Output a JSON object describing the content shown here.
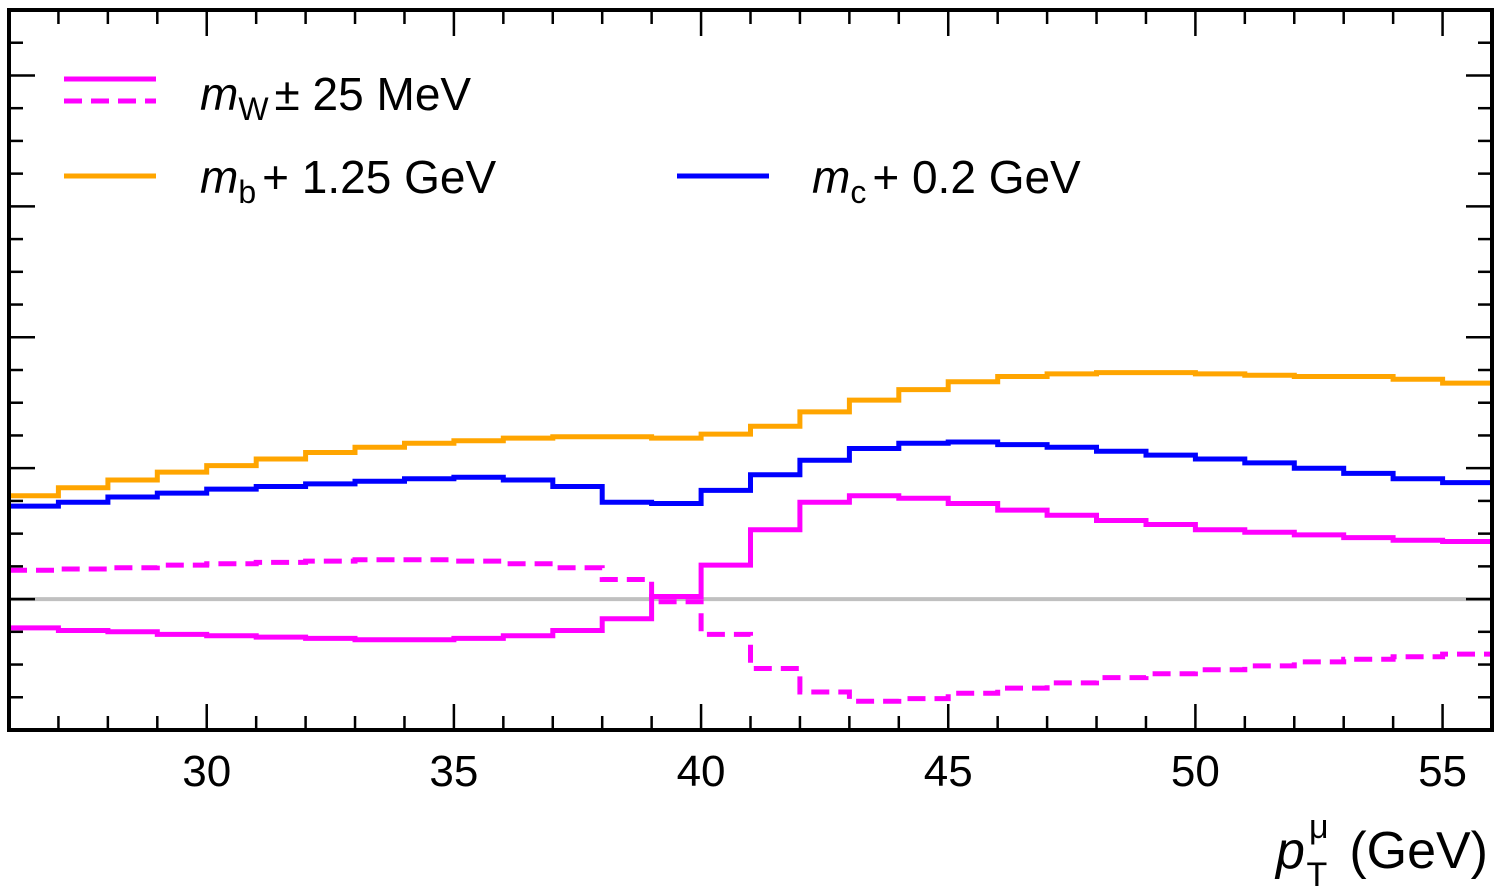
{
  "chart_data": {
    "type": "line",
    "step": true,
    "xlim": [
      26,
      56
    ],
    "ylim": [
      -1.0,
      4.5
    ],
    "grid": false,
    "legend_position": "top-left",
    "xlabel": {
      "main": "p",
      "sub": "T",
      "sup": "μ",
      "unit": "(GeV)"
    },
    "xticks": [
      30,
      35,
      40,
      45,
      50,
      55
    ],
    "reference_line": {
      "y": 0,
      "color": "#c0c0c0"
    },
    "bin_edges": [
      26,
      27,
      28,
      29,
      30,
      31,
      32,
      33,
      34,
      35,
      36,
      37,
      38,
      39,
      40,
      41,
      42,
      43,
      44,
      45,
      46,
      47,
      48,
      49,
      50,
      51,
      52,
      53,
      54,
      55,
      56
    ],
    "series": [
      {
        "name": "mW + 25 MeV",
        "color": "#ff00ff",
        "dash": "solid",
        "values": [
          -0.22,
          -0.24,
          -0.25,
          -0.27,
          -0.28,
          -0.29,
          -0.3,
          -0.31,
          -0.31,
          -0.3,
          -0.28,
          -0.24,
          -0.15,
          0.02,
          0.26,
          0.53,
          0.74,
          0.79,
          0.77,
          0.73,
          0.68,
          0.64,
          0.6,
          0.57,
          0.53,
          0.51,
          0.49,
          0.47,
          0.45,
          0.44
        ]
      },
      {
        "name": "mW - 25 MeV",
        "color": "#ff00ff",
        "dash": "dashed",
        "values": [
          0.22,
          0.23,
          0.24,
          0.26,
          0.27,
          0.28,
          0.29,
          0.3,
          0.3,
          0.29,
          0.27,
          0.24,
          0.15,
          -0.02,
          -0.27,
          -0.53,
          -0.71,
          -0.78,
          -0.76,
          -0.72,
          -0.68,
          -0.64,
          -0.6,
          -0.57,
          -0.54,
          -0.51,
          -0.48,
          -0.46,
          -0.44,
          -0.42
        ]
      },
      {
        "name": "mb + 1.25 GeV",
        "color": "#ffa500",
        "dash": "solid",
        "values": [
          0.79,
          0.85,
          0.91,
          0.97,
          1.02,
          1.07,
          1.12,
          1.16,
          1.19,
          1.21,
          1.23,
          1.24,
          1.24,
          1.23,
          1.26,
          1.32,
          1.43,
          1.52,
          1.6,
          1.66,
          1.7,
          1.72,
          1.73,
          1.73,
          1.72,
          1.71,
          1.7,
          1.7,
          1.68,
          1.65
        ]
      },
      {
        "name": "mc + 0.2 GeV",
        "color": "#0000ff",
        "dash": "solid",
        "values": [
          0.71,
          0.74,
          0.78,
          0.81,
          0.84,
          0.86,
          0.88,
          0.9,
          0.92,
          0.93,
          0.91,
          0.86,
          0.74,
          0.73,
          0.83,
          0.95,
          1.06,
          1.15,
          1.19,
          1.2,
          1.18,
          1.16,
          1.13,
          1.1,
          1.07,
          1.04,
          1.0,
          0.96,
          0.92,
          0.89
        ]
      }
    ]
  },
  "legend": {
    "row1": {
      "sym": "m",
      "sub": "W",
      "rest": "± 25 MeV"
    },
    "row2a": {
      "sym": "m",
      "sub": "b",
      "rest": "+ 1.25 GeV"
    },
    "row2b": {
      "sym": "m",
      "sub": "c",
      "rest": "+ 0.2 GeV"
    }
  },
  "colors": {
    "magenta": "#ff00ff",
    "orange": "#ffa500",
    "blue": "#0000ff",
    "axis": "#000000",
    "zero_line": "#c0c0c0"
  }
}
